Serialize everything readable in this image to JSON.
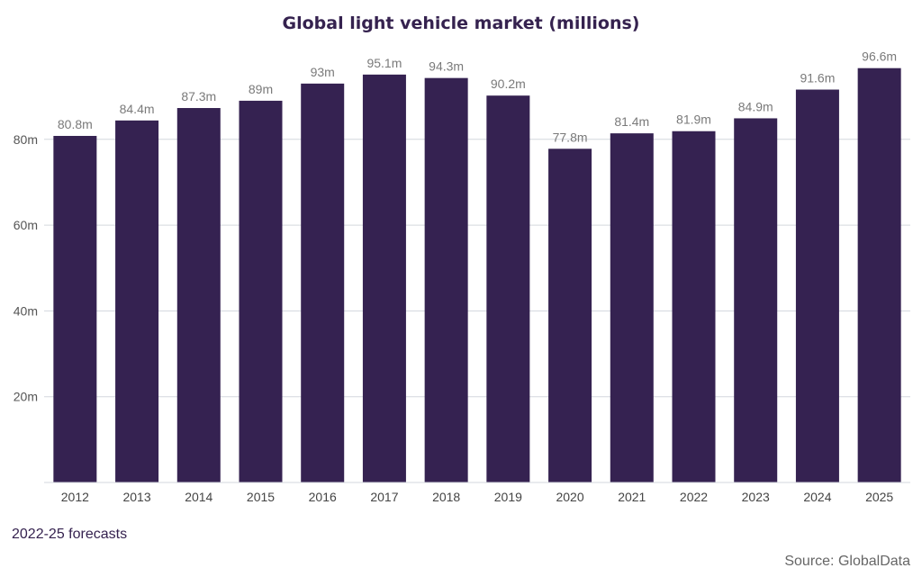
{
  "chart_data": {
    "type": "bar",
    "title": "Global light vehicle market (millions)",
    "xlabel": "",
    "ylabel": "",
    "categories": [
      "2012",
      "2013",
      "2014",
      "2015",
      "2016",
      "2017",
      "2018",
      "2019",
      "2020",
      "2021",
      "2022",
      "2023",
      "2024",
      "2025"
    ],
    "values": [
      80.8,
      84.4,
      87.3,
      89,
      93,
      95.1,
      94.3,
      90.2,
      77.8,
      81.4,
      81.9,
      84.9,
      91.6,
      96.6
    ],
    "data_labels": [
      "80.8m",
      "84.4m",
      "87.3m",
      "89m",
      "93m",
      "95.1m",
      "94.3m",
      "90.2m",
      "77.8m",
      "81.4m",
      "81.9m",
      "84.9m",
      "91.6m",
      "96.6m"
    ],
    "yticks": [
      20,
      40,
      60,
      80
    ],
    "ytick_labels": [
      "20m",
      "40m",
      "60m",
      "80m"
    ],
    "ylim": [
      0,
      100
    ],
    "grid": true,
    "bar_color": "#352251",
    "grid_color": "#d3d7de",
    "legend": "none"
  },
  "footnote": "2022-25 forecasts",
  "source": "Source: GlobalData"
}
